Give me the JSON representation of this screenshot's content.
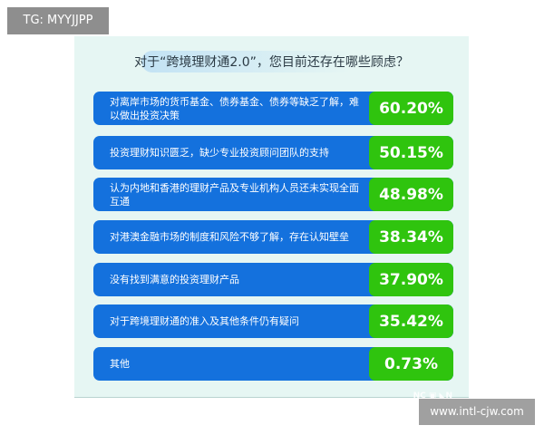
{
  "tag": "TG: MYYJJPP",
  "site": "www.intl-cjw.com",
  "watermark": "NC 南方财经 N",
  "colors": {
    "bar": "#1471dd",
    "value_box": "#2fc40e",
    "panel": "#e6f6f3"
  },
  "chart_data": {
    "type": "table",
    "title": "对于“跨境理财通2.0”，您目前还存在哪些顾虑？",
    "categories": [
      "对离岸市场的货币基金、债券基金、债券等缺乏了解，难以做出投资决策",
      "投资理财知识匮乏，缺少专业投资顾问团队的支持",
      "认为内地和香港的理财产品及专业机构人员还未实现全面互通",
      "对港澳金融市场的制度和风险不够了解，存在认知壁垒",
      "没有找到满意的投资理财产品",
      "对于跨境理财通的准入及其他条件仍有疑问",
      "其他"
    ],
    "values": [
      60.2,
      50.15,
      48.98,
      38.34,
      37.9,
      35.42,
      0.73
    ],
    "labels": [
      "60.20%",
      "50.15%",
      "48.98%",
      "38.34%",
      "37.90%",
      "35.42%",
      "0.73%"
    ]
  }
}
